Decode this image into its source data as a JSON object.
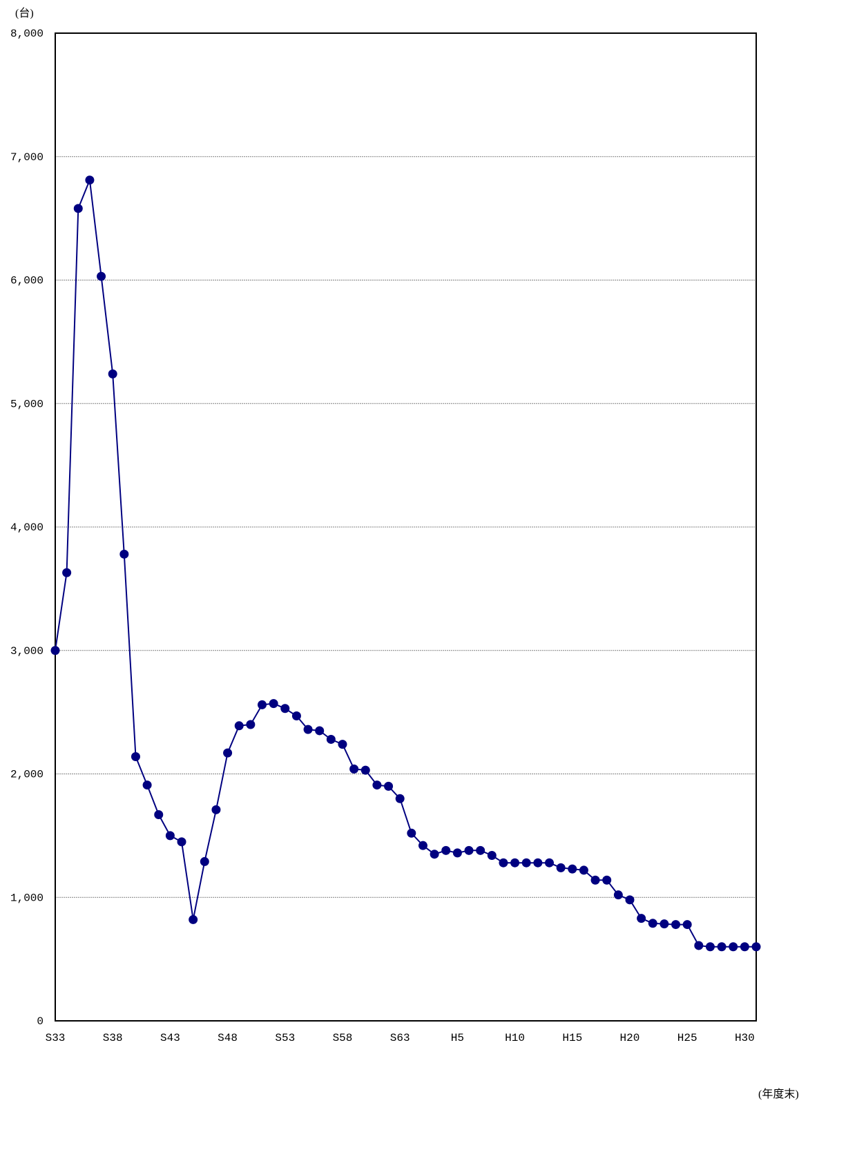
{
  "chart_data": {
    "type": "line",
    "ylabel": "(台)",
    "xlabel": "(年度末)",
    "ylim": [
      0,
      8000
    ],
    "grid": true,
    "legend": "none",
    "y_ticks": [
      {
        "value": 0,
        "label": "0"
      },
      {
        "value": 1000,
        "label": "1,000"
      },
      {
        "value": 2000,
        "label": "2,000"
      },
      {
        "value": 3000,
        "label": "3,000"
      },
      {
        "value": 4000,
        "label": "4,000"
      },
      {
        "value": 5000,
        "label": "5,000"
      },
      {
        "value": 6000,
        "label": "6,000"
      },
      {
        "value": 7000,
        "label": "7,000"
      },
      {
        "value": 8000,
        "label": "8,000"
      }
    ],
    "x_tick_labels": [
      "S33",
      "S38",
      "S43",
      "S48",
      "S53",
      "S58",
      "S63",
      "H5",
      "H10",
      "H15",
      "H20",
      "H25",
      "H30"
    ],
    "categories": [
      "S33",
      "S34",
      "S35",
      "S36",
      "S37",
      "S38",
      "S39",
      "S40",
      "S41",
      "S42",
      "S43",
      "S44",
      "S45",
      "S46",
      "S47",
      "S48",
      "S49",
      "S50",
      "S51",
      "S52",
      "S53",
      "S54",
      "S55",
      "S56",
      "S57",
      "S58",
      "S59",
      "S60",
      "S61",
      "S62",
      "S63",
      "H1",
      "H2",
      "H3",
      "H4",
      "H5",
      "H6",
      "H7",
      "H8",
      "H9",
      "H10",
      "H11",
      "H12",
      "H13",
      "H14",
      "H15",
      "H16",
      "H17",
      "H18",
      "H19",
      "H20",
      "H21",
      "H22",
      "H23",
      "H24",
      "H25",
      "H26",
      "H27",
      "H28",
      "H29",
      "H30",
      "H31"
    ],
    "values": [
      3000,
      3630,
      6580,
      6810,
      6030,
      5240,
      3780,
      2140,
      1910,
      1670,
      1500,
      1450,
      820,
      1290,
      1710,
      2170,
      2390,
      2400,
      2560,
      2570,
      2530,
      2470,
      2360,
      2350,
      2280,
      2240,
      2040,
      2030,
      1910,
      1900,
      1800,
      1520,
      1420,
      1350,
      1380,
      1360,
      1380,
      1380,
      1340,
      1280,
      1280,
      1280,
      1280,
      1280,
      1240,
      1230,
      1220,
      1140,
      1140,
      1020,
      980,
      830,
      790,
      785,
      780,
      780,
      610,
      600,
      600,
      600,
      600,
      600
    ],
    "colors": {
      "series": "#000080",
      "grid": "#808080",
      "axis": "#000000"
    }
  }
}
